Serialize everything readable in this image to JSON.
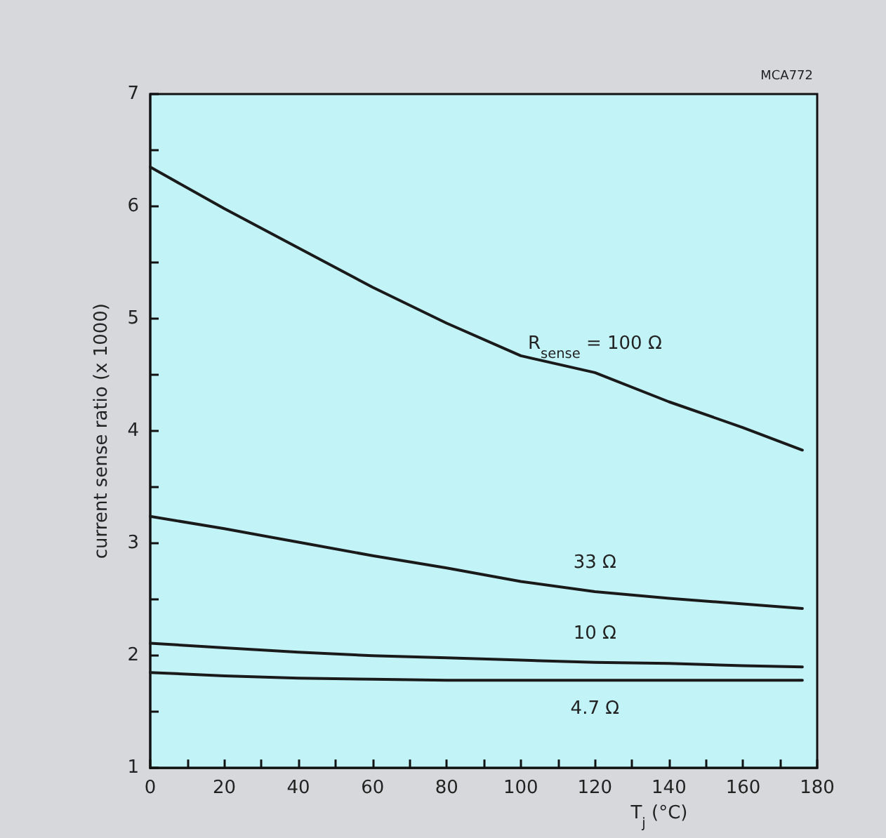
{
  "chart_data": {
    "type": "line",
    "xlabel": "T$_{j}$ (°C)",
    "ylabel": "current sense ratio (x 1000)",
    "x": [
      0,
      20,
      40,
      60,
      80,
      100,
      120,
      140,
      160,
      176
    ],
    "series": [
      {
        "name": "R$_{sense}$ = 100 Ω",
        "color": "#1a1a1a",
        "values": [
          6.35,
          5.98,
          5.63,
          5.28,
          4.96,
          4.67,
          4.52,
          4.26,
          4.03,
          3.83
        ]
      },
      {
        "name": "33 Ω",
        "color": "#1a1a1a",
        "values": [
          3.24,
          3.13,
          3.01,
          2.89,
          2.78,
          2.66,
          2.57,
          2.51,
          2.46,
          2.42
        ]
      },
      {
        "name": "10 Ω",
        "color": "#1a1a1a",
        "values": [
          2.11,
          2.07,
          2.03,
          2.0,
          1.98,
          1.96,
          1.94,
          1.93,
          1.91,
          1.9
        ]
      },
      {
        "name": "4.7 Ω",
        "color": "#1a1a1a",
        "values": [
          1.85,
          1.82,
          1.8,
          1.79,
          1.78,
          1.78,
          1.78,
          1.78,
          1.78,
          1.78
        ]
      }
    ],
    "xlim": [
      0,
      180
    ],
    "xticks": [
      0,
      {
        "value": 10,
        "label": null
      },
      20,
      {
        "value": 30,
        "label": null
      },
      40,
      {
        "value": 50,
        "label": null
      },
      60,
      {
        "value": 70,
        "label": null
      },
      80,
      {
        "value": 90,
        "label": null
      },
      100,
      {
        "value": 110,
        "label": null
      },
      120,
      {
        "value": 130,
        "label": null
      },
      140,
      {
        "value": 150,
        "label": null
      },
      160,
      {
        "value": 170,
        "label": null
      },
      180
    ],
    "ylim": [
      1,
      7
    ],
    "yticks": [
      1,
      {
        "value": 1.5,
        "label": null
      },
      2,
      {
        "value": 2.5,
        "label": null
      },
      3,
      {
        "value": 3.5,
        "label": null
      },
      4,
      {
        "value": 4.5,
        "label": null
      },
      5,
      {
        "value": 5.5,
        "label": null
      },
      6,
      {
        "value": 6.5,
        "label": null
      },
      7
    ],
    "annotations": [
      "MCA772"
    ],
    "grid": false,
    "legend": false,
    "marker": "none",
    "line_style": "solid"
  }
}
